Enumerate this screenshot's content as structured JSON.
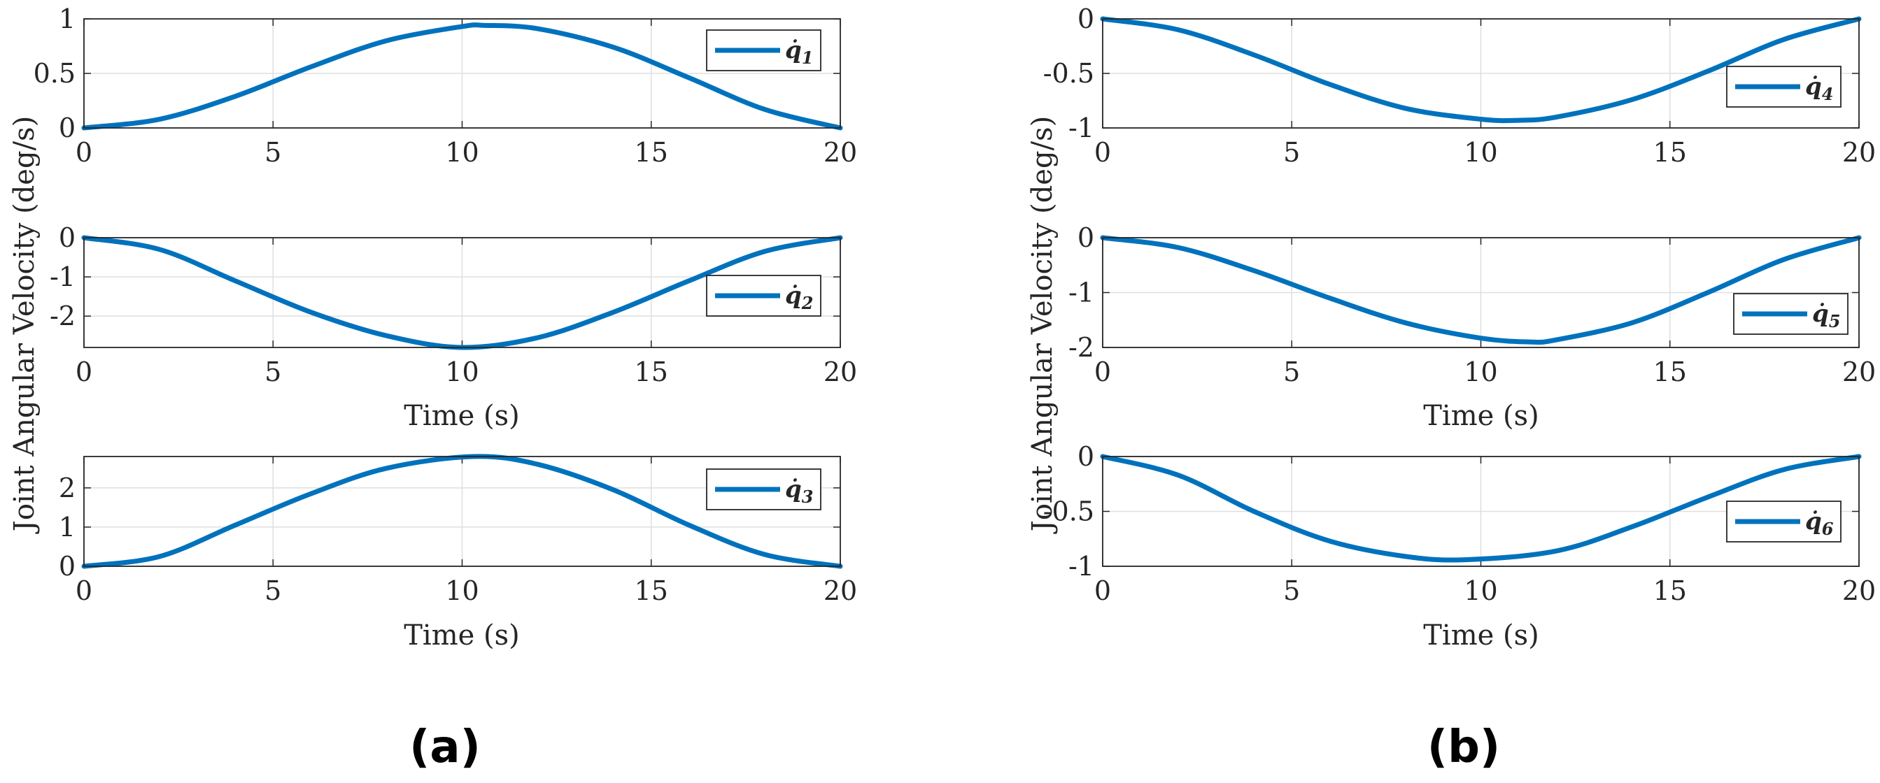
{
  "panel_labels": {
    "a": "(a)",
    "b": "(b)"
  },
  "ylabel": "Joint Angular Velocity (deg/s)",
  "xlabel": "Time (s)",
  "colors": {
    "series": "#0072BD",
    "grid": "#DFDFDF",
    "axis": "#262626"
  },
  "chart_data": [
    {
      "type": "line",
      "legend": {
        "main": "q̇",
        "sub": "1"
      },
      "ylim": [
        0,
        1
      ],
      "yticks": [
        0,
        0.5,
        1
      ],
      "yticklabels": [
        "0",
        "0.5",
        "1"
      ],
      "xlim": [
        0,
        20
      ],
      "xticks": [
        0,
        5,
        10,
        15,
        20
      ],
      "xticklabels": [
        "0",
        "5",
        "10",
        "15",
        "20"
      ],
      "grid": true,
      "legend_position": "top-right",
      "x": [
        0,
        2,
        4,
        6,
        8,
        10,
        10.6,
        12,
        14,
        16,
        18,
        20
      ],
      "y": [
        0,
        0.08,
        0.29,
        0.56,
        0.8,
        0.93,
        0.94,
        0.91,
        0.74,
        0.46,
        0.17,
        0
      ]
    },
    {
      "type": "line",
      "legend": {
        "main": "q̇",
        "sub": "2"
      },
      "ylim": [
        -2.8,
        0
      ],
      "yticks": [
        0,
        -1,
        -2
      ],
      "yticklabels": [
        "0",
        "-1",
        "-2"
      ],
      "xlim": [
        0,
        20
      ],
      "xticks": [
        0,
        5,
        10,
        15,
        20
      ],
      "xticklabels": [
        "0",
        "5",
        "10",
        "15",
        "20"
      ],
      "grid": true,
      "legend_position": "top-right",
      "x": [
        0,
        2,
        4,
        6,
        8,
        10,
        12,
        14,
        16,
        18,
        20
      ],
      "y": [
        0,
        -0.3,
        -1.1,
        -1.9,
        -2.5,
        -2.8,
        -2.55,
        -1.9,
        -1.1,
        -0.35,
        0
      ]
    },
    {
      "type": "line",
      "legend": {
        "main": "q̇",
        "sub": "3"
      },
      "ylim": [
        0,
        2.8
      ],
      "yticks": [
        0,
        1,
        2
      ],
      "yticklabels": [
        "0",
        "1",
        "2"
      ],
      "xlim": [
        0,
        20
      ],
      "xticks": [
        0,
        5,
        10,
        15,
        20
      ],
      "xticklabels": [
        "0",
        "5",
        "10",
        "15",
        "20"
      ],
      "grid": true,
      "legend_position": "top-right",
      "x": [
        0,
        2,
        4,
        6,
        8,
        10.3,
        12,
        14,
        16,
        18,
        20
      ],
      "y": [
        0,
        0.25,
        1.05,
        1.85,
        2.5,
        2.8,
        2.6,
        1.95,
        1.05,
        0.3,
        0
      ]
    },
    {
      "type": "line",
      "legend": {
        "main": "q̇",
        "sub": "4"
      },
      "ylim": [
        -1,
        0
      ],
      "yticks": [
        0,
        -0.5,
        -1
      ],
      "yticklabels": [
        "0",
        "-0.5",
        "-1"
      ],
      "xlim": [
        0,
        20
      ],
      "xticks": [
        0,
        5,
        10,
        15,
        20
      ],
      "xticklabels": [
        "0",
        "5",
        "10",
        "15",
        "20"
      ],
      "grid": true,
      "legend_position": "right",
      "x": [
        0,
        2,
        4,
        6,
        8,
        10,
        11,
        12,
        14,
        16,
        18,
        20
      ],
      "y": [
        0,
        -0.1,
        -0.33,
        -0.6,
        -0.82,
        -0.92,
        -0.93,
        -0.9,
        -0.74,
        -0.48,
        -0.19,
        0
      ]
    },
    {
      "type": "line",
      "legend": {
        "main": "q̇",
        "sub": "5"
      },
      "ylim": [
        -2,
        0
      ],
      "yticks": [
        0,
        -1,
        -2
      ],
      "yticklabels": [
        "0",
        "-1",
        "-2"
      ],
      "xlim": [
        0,
        20
      ],
      "xticks": [
        0,
        5,
        10,
        15,
        20
      ],
      "xticklabels": [
        "0",
        "5",
        "10",
        "15",
        "20"
      ],
      "grid": true,
      "legend_position": "right",
      "x": [
        0,
        2,
        4,
        6,
        8,
        10,
        11.3,
        12,
        14,
        16,
        18,
        20
      ],
      "y": [
        0,
        -0.18,
        -0.6,
        -1.1,
        -1.55,
        -1.83,
        -1.9,
        -1.86,
        -1.55,
        -1.0,
        -0.4,
        0
      ]
    },
    {
      "type": "line",
      "legend": {
        "main": "q̇",
        "sub": "6"
      },
      "ylim": [
        -1,
        0
      ],
      "yticks": [
        0,
        -0.5,
        -1
      ],
      "yticklabels": [
        "0",
        "-0.5",
        "-1"
      ],
      "xlim": [
        0,
        20
      ],
      "xticks": [
        0,
        5,
        10,
        15,
        20
      ],
      "xticklabels": [
        "0",
        "5",
        "10",
        "15",
        "20"
      ],
      "grid": true,
      "legend_position": "right",
      "x": [
        0,
        2,
        4,
        6,
        8,
        9.6,
        12,
        14,
        16,
        18,
        20
      ],
      "y": [
        0,
        -0.17,
        -0.5,
        -0.77,
        -0.91,
        -0.94,
        -0.86,
        -0.64,
        -0.37,
        -0.12,
        0
      ]
    }
  ]
}
